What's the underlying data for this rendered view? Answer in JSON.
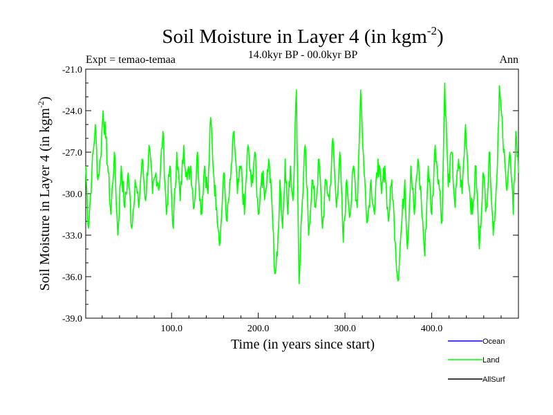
{
  "chart_data": {
    "type": "line",
    "title_main": "Soil Moisture in Layer 4 (in kgm",
    "title_sup": "-2",
    "title_close": ")",
    "subtitle": "14.0kyr BP - 00.0kyr BP",
    "left_label": "Expt = temao-temaa",
    "right_label": "Ann",
    "xlabel": "Time (in years since start)",
    "ylabel_main": "Soil Moisture in Layer 4 (in kgm",
    "ylabel_sup": "-2",
    "ylabel_close": ")",
    "xlim": [
      1,
      500
    ],
    "ylim": [
      -39.0,
      -21.0
    ],
    "x_ticks": [
      100,
      200,
      300,
      400
    ],
    "x_tick_labels": [
      "100.0",
      "200.0",
      "300.0",
      "400.0"
    ],
    "y_ticks": [
      -21,
      -24,
      -27,
      -30,
      -33,
      -36,
      -39
    ],
    "y_tick_labels": [
      "-21.0",
      "-24.0",
      "-27.0",
      "-30.0",
      "-33.0",
      "-36.0",
      "-39.0"
    ],
    "legend": [
      {
        "name": "Ocean",
        "color": "#0000ff"
      },
      {
        "name": "Land",
        "color": "#00ff00"
      },
      {
        "name": "AllSurf",
        "color": "#000000"
      }
    ],
    "series": [
      {
        "name": "Land",
        "color": "#00ff00",
        "anchors": [
          [
            1,
            -28.0
          ],
          [
            4,
            -32.5
          ],
          [
            8,
            -28.5
          ],
          [
            12,
            -25.0
          ],
          [
            15,
            -29.0
          ],
          [
            18,
            -27.5
          ],
          [
            21,
            -24.0
          ],
          [
            24,
            -26.0
          ],
          [
            27,
            -28.5
          ],
          [
            30,
            -31.5
          ],
          [
            34,
            -27.0
          ],
          [
            38,
            -33.0
          ],
          [
            42,
            -28.0
          ],
          [
            46,
            -31.0
          ],
          [
            50,
            -28.5
          ],
          [
            54,
            -32.5
          ],
          [
            58,
            -29.0
          ],
          [
            62,
            -31.0
          ],
          [
            66,
            -27.5
          ],
          [
            70,
            -30.5
          ],
          [
            74,
            -26.5
          ],
          [
            78,
            -30.0
          ],
          [
            82,
            -28.5
          ],
          [
            86,
            -29.5
          ],
          [
            90,
            -25.5
          ],
          [
            94,
            -31.5
          ],
          [
            98,
            -28.0
          ],
          [
            102,
            -32.5
          ],
          [
            106,
            -27.0
          ],
          [
            110,
            -30.5
          ],
          [
            114,
            -26.5
          ],
          [
            118,
            -29.0
          ],
          [
            122,
            -28.0
          ],
          [
            126,
            -31.0
          ],
          [
            130,
            -27.0
          ],
          [
            134,
            -31.5
          ],
          [
            138,
            -28.0
          ],
          [
            142,
            -30.0
          ],
          [
            145,
            -24.5
          ],
          [
            149,
            -29.0
          ],
          [
            152,
            -31.0
          ],
          [
            156,
            -33.5
          ],
          [
            160,
            -28.5
          ],
          [
            164,
            -32.0
          ],
          [
            168,
            -29.0
          ],
          [
            172,
            -25.5
          ],
          [
            176,
            -30.0
          ],
          [
            180,
            -28.0
          ],
          [
            184,
            -31.5
          ],
          [
            188,
            -26.5
          ],
          [
            192,
            -29.5
          ],
          [
            196,
            -27.0
          ],
          [
            200,
            -31.5
          ],
          [
            204,
            -28.5
          ],
          [
            208,
            -30.0
          ],
          [
            212,
            -27.5
          ],
          [
            216,
            -31.0
          ],
          [
            219,
            -35.8
          ],
          [
            222,
            -34.5
          ],
          [
            225,
            -29.0
          ],
          [
            228,
            -32.5
          ],
          [
            231,
            -27.5
          ],
          [
            234,
            -31.5
          ],
          [
            237,
            -28.0
          ],
          [
            240,
            -30.5
          ],
          [
            244,
            -22.5
          ],
          [
            247,
            -36.5
          ],
          [
            250,
            -31.5
          ],
          [
            254,
            -26.5
          ],
          [
            258,
            -33.0
          ],
          [
            262,
            -29.0
          ],
          [
            266,
            -31.0
          ],
          [
            270,
            -27.5
          ],
          [
            274,
            -32.5
          ],
          [
            278,
            -29.0
          ],
          [
            282,
            -30.5
          ],
          [
            286,
            -26.0
          ],
          [
            290,
            -31.0
          ],
          [
            294,
            -27.0
          ],
          [
            298,
            -33.5
          ],
          [
            302,
            -29.0
          ],
          [
            306,
            -31.5
          ],
          [
            310,
            -28.0
          ],
          [
            314,
            -31.0
          ],
          [
            318,
            -22.5
          ],
          [
            322,
            -28.5
          ],
          [
            326,
            -32.0
          ],
          [
            330,
            -29.0
          ],
          [
            334,
            -31.5
          ],
          [
            338,
            -27.5
          ],
          [
            342,
            -30.0
          ],
          [
            346,
            -28.0
          ],
          [
            350,
            -32.0
          ],
          [
            354,
            -29.0
          ],
          [
            358,
            -33.5
          ],
          [
            361,
            -36.3
          ],
          [
            365,
            -32.5
          ],
          [
            369,
            -29.0
          ],
          [
            372,
            -34.0
          ],
          [
            376,
            -28.0
          ],
          [
            380,
            -31.5
          ],
          [
            384,
            -27.5
          ],
          [
            388,
            -30.5
          ],
          [
            392,
            -34.5
          ],
          [
            396,
            -28.0
          ],
          [
            400,
            -31.5
          ],
          [
            404,
            -26.5
          ],
          [
            408,
            -29.0
          ],
          [
            412,
            -32.0
          ],
          [
            415,
            -22.0
          ],
          [
            419,
            -29.5
          ],
          [
            423,
            -27.0
          ],
          [
            427,
            -31.0
          ],
          [
            431,
            -27.5
          ],
          [
            435,
            -30.0
          ],
          [
            439,
            -25.0
          ],
          [
            443,
            -29.5
          ],
          [
            447,
            -31.5
          ],
          [
            451,
            -28.0
          ],
          [
            455,
            -34.0
          ],
          [
            459,
            -28.5
          ],
          [
            463,
            -31.0
          ],
          [
            467,
            -27.0
          ],
          [
            471,
            -33.0
          ],
          [
            475,
            -29.0
          ],
          [
            478,
            -22.2
          ],
          [
            482,
            -26.0
          ],
          [
            486,
            -29.5
          ],
          [
            490,
            -27.0
          ],
          [
            494,
            -31.5
          ],
          [
            497,
            -25.5
          ],
          [
            500,
            -28.5
          ]
        ]
      }
    ]
  }
}
